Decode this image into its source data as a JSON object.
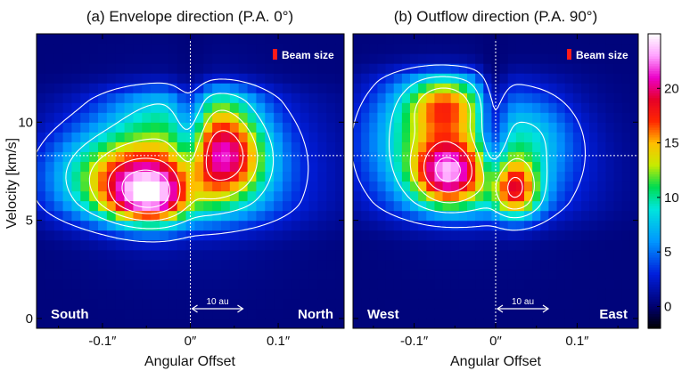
{
  "chart_data": [
    {
      "type": "heatmap",
      "title": "(a) Envelope direction (P.A. 0°)",
      "xlabel": "Angular Offset",
      "ylabel": "Velocity [km/s]",
      "xlim": [
        -0.175,
        0.175
      ],
      "ylim": [
        -0.5,
        14.5
      ],
      "x_ticks": [
        -0.1,
        0,
        0.1
      ],
      "x_tick_labels": [
        "-0.1″",
        "0″",
        "0.1″"
      ],
      "y_ticks": [
        0,
        5,
        10
      ],
      "y_tick_labels": [
        "0",
        "5",
        "10"
      ],
      "reference_lines": {
        "x": 0,
        "y": 8.3
      },
      "corner_labels": {
        "left": "South",
        "right": "North"
      },
      "scale_bar": {
        "label": "10 au"
      },
      "beam_label": "Beam size",
      "emission_peaks": [
        {
          "x": -0.045,
          "velocity": 6.2,
          "intensity": 23
        },
        {
          "x": 0.043,
          "velocity": 8.2,
          "intensity": 17
        }
      ]
    },
    {
      "type": "heatmap",
      "title": "(b) Outflow direction (P.A. 90°)",
      "xlabel": "Angular Offset",
      "xlim": [
        -0.175,
        0.175
      ],
      "ylim": [
        -0.5,
        14.5
      ],
      "x_ticks": [
        -0.1,
        0,
        0.1
      ],
      "x_tick_labels": [
        "-0.1″",
        "0″",
        "0.1″"
      ],
      "reference_lines": {
        "x": 0,
        "y": 8.3
      },
      "corner_labels": {
        "left": "West",
        "right": "East"
      },
      "scale_bar": {
        "label": "10 au"
      },
      "beam_label": "Beam size",
      "emission_peaks": [
        {
          "x": -0.058,
          "velocity": 7.5,
          "intensity": 22
        },
        {
          "x": 0.022,
          "velocity": 6.5,
          "intensity": 21
        },
        {
          "x": -0.06,
          "velocity": 11.0,
          "intensity": 14
        }
      ]
    }
  ],
  "colorbar": {
    "min": -2,
    "max": 25,
    "ticks": [
      0,
      5,
      10,
      15,
      20
    ],
    "tick_labels": [
      "0",
      "5",
      "10",
      "15",
      "20"
    ]
  }
}
